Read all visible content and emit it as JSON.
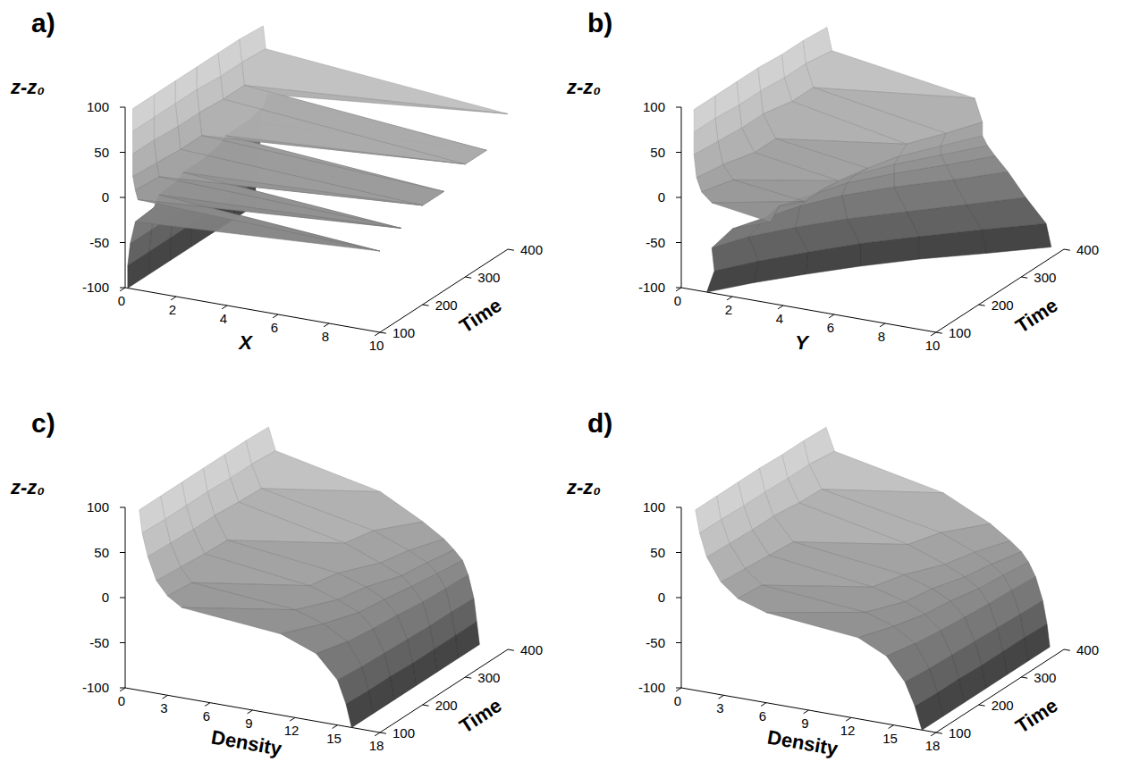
{
  "chart_data": [
    {
      "type": "surface",
      "panel": "a)",
      "xlabel": "X",
      "ylabel": "Time",
      "zlabel": "z-z₀",
      "xlim": [
        0,
        10
      ],
      "xticks": [
        0,
        2,
        4,
        6,
        8,
        10
      ],
      "ylim": [
        100,
        400
      ],
      "yticks": [
        100,
        200,
        300,
        400
      ],
      "zlim": [
        -100,
        100
      ],
      "zticks": [
        -100,
        -50,
        0,
        50,
        100
      ],
      "y": [
        100,
        150,
        200,
        250,
        300,
        350,
        400
      ],
      "z": [
        -100,
        -75,
        -50,
        -25,
        -10,
        0,
        10,
        25,
        50,
        75,
        100
      ],
      "values": [
        [
          0.1,
          0.1,
          0.2,
          0.4,
          10,
          0.5,
          0.4,
          0.3,
          0.3,
          0.3,
          0.3
        ],
        [
          0.1,
          0.1,
          0.2,
          0.3,
          0.5,
          10,
          0.5,
          0.4,
          0.3,
          0.3,
          0.3
        ],
        [
          0.1,
          0.1,
          0.2,
          0.3,
          0.4,
          0.6,
          10,
          0.5,
          0.4,
          0.3,
          0.3
        ],
        [
          0.1,
          0.1,
          0.2,
          0.3,
          0.4,
          0.6,
          10,
          0.5,
          0.4,
          0.3,
          0.3
        ],
        [
          0.1,
          0.1,
          0.2,
          0.3,
          0.3,
          0.4,
          0.6,
          10,
          0.5,
          0.4,
          0.3
        ],
        [
          0.1,
          0.1,
          0.2,
          0.3,
          0.3,
          0.4,
          0.6,
          10,
          0.5,
          0.4,
          0.3
        ],
        [
          0.1,
          0.1,
          0.2,
          0.3,
          0.3,
          0.3,
          0.4,
          0.6,
          10,
          0.5,
          0.4
        ]
      ]
    },
    {
      "type": "surface",
      "panel": "b)",
      "xlabel": "Y",
      "ylabel": "Time",
      "zlabel": "z-z₀",
      "xlim": [
        0,
        10
      ],
      "xticks": [
        0,
        2,
        4,
        6,
        8,
        10
      ],
      "ylim": [
        100,
        400
      ],
      "yticks": [
        100,
        200,
        300,
        400
      ],
      "zlim": [
        -100,
        100
      ],
      "zticks": [
        -100,
        -50,
        0,
        50,
        100
      ],
      "y": [
        100,
        150,
        200,
        250,
        300,
        350,
        400
      ],
      "z": [
        -100,
        -75,
        -50,
        -25,
        -10,
        0,
        10,
        25,
        50,
        75,
        100
      ],
      "values": [
        [
          1.0,
          1.3,
          1.2,
          2.0,
          3.5,
          1.2,
          0.8,
          0.6,
          0.5,
          0.5,
          0.5
        ],
        [
          2.0,
          2.2,
          1.8,
          2.5,
          3.0,
          4.0,
          1.2,
          0.8,
          0.6,
          0.5,
          0.5
        ],
        [
          3.2,
          3.3,
          2.8,
          3.0,
          3.5,
          4.0,
          4.5,
          1.2,
          0.7,
          0.6,
          0.5
        ],
        [
          4.5,
          4.5,
          4.0,
          3.8,
          4.0,
          4.3,
          4.8,
          1.2,
          0.7,
          0.6,
          0.5
        ],
        [
          6.0,
          6.0,
          5.5,
          5.0,
          5.0,
          5.0,
          5.2,
          5.5,
          1.0,
          0.7,
          0.6
        ],
        [
          7.8,
          7.6,
          7.0,
          6.5,
          6.2,
          6.0,
          6.0,
          6.2,
          1.0,
          0.7,
          0.6
        ],
        [
          9.5,
          9.3,
          8.5,
          7.8,
          7.3,
          7.0,
          6.8,
          6.8,
          6.5,
          0.9,
          0.7
        ]
      ]
    },
    {
      "type": "surface",
      "panel": "c)",
      "xlabel": "Density",
      "ylabel": "Time",
      "zlabel": "z-z₀",
      "xlim": [
        0,
        18
      ],
      "xticks": [
        0,
        3,
        6,
        9,
        12,
        15,
        18
      ],
      "ylim": [
        100,
        400
      ],
      "yticks": [
        100,
        200,
        300,
        400
      ],
      "zlim": [
        -100,
        100
      ],
      "zticks": [
        -100,
        -50,
        0,
        50,
        100
      ],
      "y": [
        100,
        150,
        200,
        250,
        300,
        350,
        400
      ],
      "z": [
        -100,
        -75,
        -50,
        -25,
        -10,
        0,
        10,
        25,
        50,
        75,
        100
      ],
      "values": [
        [
          16.0,
          15.6,
          15.0,
          13.5,
          11.0,
          4.0,
          3.0,
          2.2,
          1.6,
          1.2,
          1.0
        ],
        [
          16.0,
          15.7,
          15.2,
          14.2,
          12.5,
          10.5,
          3.2,
          2.4,
          1.7,
          1.3,
          1.0
        ],
        [
          16.0,
          15.7,
          15.3,
          14.5,
          13.5,
          12.0,
          10.0,
          2.6,
          1.8,
          1.3,
          1.0
        ],
        [
          16.0,
          15.8,
          15.4,
          14.7,
          13.8,
          12.5,
          10.5,
          2.7,
          1.8,
          1.3,
          1.0
        ],
        [
          16.0,
          15.8,
          15.5,
          15.0,
          14.2,
          13.5,
          12.0,
          9.5,
          2.0,
          1.4,
          1.0
        ],
        [
          16.0,
          15.8,
          15.5,
          15.1,
          14.5,
          13.8,
          12.5,
          10.0,
          2.1,
          1.4,
          1.0
        ],
        [
          16.0,
          15.8,
          15.6,
          15.2,
          14.8,
          14.2,
          13.5,
          12.0,
          9.0,
          1.6,
          1.1
        ]
      ]
    },
    {
      "type": "surface",
      "panel": "d)",
      "xlabel": "Density",
      "ylabel": "Time",
      "zlabel": "z-z₀",
      "xlim": [
        0,
        18
      ],
      "xticks": [
        0,
        3,
        6,
        9,
        12,
        15,
        18
      ],
      "ylim": [
        100,
        400
      ],
      "yticks": [
        100,
        200,
        300,
        400
      ],
      "zlim": [
        -100,
        100
      ],
      "zticks": [
        -100,
        -50,
        0,
        50,
        100
      ],
      "y": [
        100,
        150,
        200,
        250,
        300,
        350,
        400
      ],
      "z": [
        -100,
        -75,
        -50,
        -25,
        -10,
        0,
        10,
        25,
        50,
        75,
        100
      ],
      "values": [
        [
          17.0,
          16.5,
          15.8,
          14.5,
          12.5,
          6.0,
          4.0,
          2.8,
          1.8,
          1.3,
          1.0
        ],
        [
          17.0,
          16.6,
          16.0,
          15.0,
          13.5,
          11.5,
          4.2,
          3.0,
          1.9,
          1.3,
          1.0
        ],
        [
          17.0,
          16.6,
          16.1,
          15.3,
          14.2,
          12.8,
          10.5,
          3.2,
          2.0,
          1.4,
          1.0
        ],
        [
          17.0,
          16.7,
          16.2,
          15.5,
          14.5,
          13.2,
          11.2,
          3.4,
          2.0,
          1.4,
          1.0
        ],
        [
          17.0,
          16.7,
          16.3,
          15.7,
          15.0,
          14.0,
          12.6,
          10.0,
          2.3,
          1.5,
          1.1
        ],
        [
          17.0,
          16.7,
          16.4,
          15.8,
          15.2,
          14.4,
          13.2,
          10.8,
          2.4,
          1.5,
          1.1
        ],
        [
          17.0,
          16.8,
          16.5,
          16.0,
          15.5,
          15.0,
          14.2,
          12.8,
          9.5,
          1.8,
          1.2
        ]
      ]
    }
  ]
}
